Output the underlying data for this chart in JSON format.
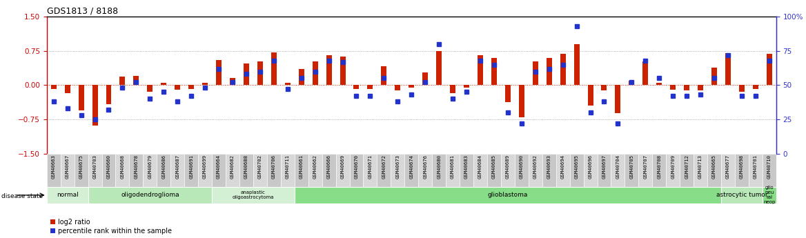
{
  "title": "GDS1813 / 8188",
  "samples": [
    "GSM40663",
    "GSM40667",
    "GSM40675",
    "GSM40703",
    "GSM40660",
    "GSM40668",
    "GSM40678",
    "GSM40679",
    "GSM40686",
    "GSM40687",
    "GSM40691",
    "GSM40699",
    "GSM40664",
    "GSM40682",
    "GSM40688",
    "GSM40702",
    "GSM40706",
    "GSM40711",
    "GSM40661",
    "GSM40662",
    "GSM40666",
    "GSM40669",
    "GSM40670",
    "GSM40671",
    "GSM40672",
    "GSM40673",
    "GSM40674",
    "GSM40676",
    "GSM40680",
    "GSM40681",
    "GSM40683",
    "GSM40684",
    "GSM40685",
    "GSM40689",
    "GSM40690",
    "GSM40692",
    "GSM40693",
    "GSM40694",
    "GSM40695",
    "GSM40696",
    "GSM40697",
    "GSM40704",
    "GSM40705",
    "GSM40707",
    "GSM40708",
    "GSM40709",
    "GSM40712",
    "GSM40713",
    "GSM40665",
    "GSM40677",
    "GSM40698",
    "GSM40701",
    "GSM40710"
  ],
  "log2_ratio": [
    -0.08,
    -0.18,
    -0.55,
    -0.88,
    -0.42,
    0.18,
    0.2,
    -0.15,
    0.05,
    -0.1,
    -0.08,
    0.05,
    0.55,
    0.15,
    0.48,
    0.52,
    0.72,
    0.05,
    0.35,
    0.52,
    0.65,
    0.62,
    -0.08,
    -0.08,
    0.42,
    -0.12,
    -0.05,
    0.28,
    0.75,
    -0.18,
    -0.05,
    0.65,
    0.6,
    -0.38,
    -0.7,
    0.52,
    0.6,
    0.68,
    0.9,
    -0.45,
    -0.12,
    -0.62,
    0.1,
    0.52,
    0.05,
    -0.1,
    -0.12,
    -0.12,
    0.38,
    0.7,
    -0.15,
    -0.08,
    0.68
  ],
  "percentile": [
    38,
    33,
    28,
    25,
    32,
    48,
    52,
    40,
    45,
    38,
    42,
    48,
    62,
    52,
    58,
    60,
    68,
    47,
    55,
    60,
    68,
    67,
    42,
    42,
    55,
    38,
    43,
    52,
    80,
    40,
    45,
    68,
    65,
    30,
    22,
    60,
    62,
    65,
    93,
    30,
    38,
    22,
    52,
    68,
    55,
    42,
    42,
    43,
    55,
    72,
    42,
    42,
    68
  ],
  "disease_groups": [
    {
      "label": "normal",
      "start": 0,
      "end": 3,
      "color": "#d4f0d4"
    },
    {
      "label": "oligodendroglioma",
      "start": 3,
      "end": 12,
      "color": "#b8e8b8"
    },
    {
      "label": "anaplastic\noligoastrocytoma",
      "start": 12,
      "end": 18,
      "color": "#d4f0d4"
    },
    {
      "label": "glioblastoma",
      "start": 18,
      "end": 49,
      "color": "#88dd88"
    },
    {
      "label": "astrocytic tumor",
      "start": 49,
      "end": 52,
      "color": "#b8e8b8"
    },
    {
      "label": "glio\nneu\nral\nneop",
      "start": 52,
      "end": 53,
      "color": "#88dd88"
    }
  ],
  "ylim": [
    -1.5,
    1.5
  ],
  "yticks_left": [
    -1.5,
    -0.75,
    0.0,
    0.75,
    1.5
  ],
  "yticks_right": [
    0,
    25,
    50,
    75,
    100
  ],
  "left_color": "#cc0000",
  "right_color": "#3333cc",
  "bar_color_red": "#cc2200",
  "bar_color_blue": "#2233cc",
  "grid_color": "#999999",
  "bg_color": "#ffffff"
}
